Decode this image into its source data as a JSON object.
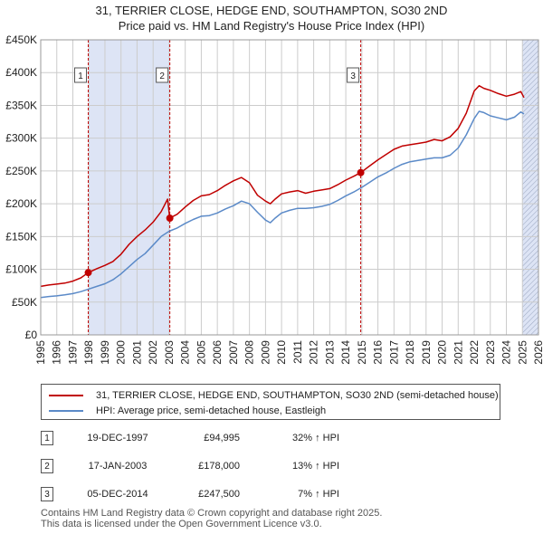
{
  "title_line1": "31, TERRIER CLOSE, HEDGE END, SOUTHAMPTON, SO30 2ND",
  "title_line2": "Price paid vs. HM Land Registry's House Price Index (HPI)",
  "colors": {
    "price_line": "#c00000",
    "hpi_line": "#5b8ac8",
    "shade": "#dde4f5",
    "grid": "#cccccc",
    "vline": "#c00000"
  },
  "chart_data": {
    "type": "line",
    "x_range": [
      1995,
      2026
    ],
    "ylim": [
      0,
      450000
    ],
    "y_ticks": [
      0,
      50000,
      100000,
      150000,
      200000,
      250000,
      300000,
      350000,
      400000,
      450000
    ],
    "y_tick_labels": [
      "£0",
      "£50K",
      "£100K",
      "£150K",
      "£200K",
      "£250K",
      "£300K",
      "£350K",
      "£400K",
      "£450K"
    ],
    "x_ticks": [
      1995,
      1996,
      1997,
      1998,
      1999,
      2000,
      2001,
      2002,
      2003,
      2004,
      2005,
      2006,
      2007,
      2008,
      2009,
      2010,
      2011,
      2012,
      2013,
      2014,
      2015,
      2016,
      2017,
      2018,
      2019,
      2020,
      2021,
      2022,
      2023,
      2024,
      2025,
      2026
    ],
    "shaded_spans": [
      [
        1997.96,
        2003.04
      ],
      [
        2025.0,
        2026.0
      ]
    ],
    "hatched_span": [
      2025.0,
      2026.0
    ],
    "series": [
      {
        "name": "31, TERRIER CLOSE, HEDGE END, SOUTHAMPTON, SO30 2ND (semi-detached house)",
        "color": "#c00000",
        "x": [
          1995,
          1995.5,
          1996,
          1996.5,
          1997,
          1997.5,
          1997.96,
          1998.5,
          1999,
          1999.5,
          2000,
          2000.5,
          2001,
          2001.5,
          2002,
          2002.5,
          2002.9,
          2003.04,
          2003.5,
          2004,
          2004.5,
          2005,
          2005.5,
          2006,
          2006.5,
          2007,
          2007.5,
          2008,
          2008.5,
          2009,
          2009.3,
          2009.6,
          2010,
          2010.5,
          2011,
          2011.5,
          2012,
          2012.5,
          2013,
          2013.5,
          2014,
          2014.5,
          2014.93,
          2015.5,
          2016,
          2016.5,
          2017,
          2017.5,
          2018,
          2018.5,
          2019,
          2019.5,
          2020,
          2020.5,
          2021,
          2021.5,
          2022,
          2022.3,
          2022.6,
          2023,
          2023.5,
          2024,
          2024.5,
          2024.9,
          2025.1
        ],
        "values": [
          74000,
          76000,
          77500,
          79000,
          82000,
          87000,
          94995,
          101000,
          106000,
          112000,
          123000,
          138000,
          150000,
          160000,
          172000,
          188000,
          207000,
          178000,
          184000,
          195000,
          205000,
          212000,
          214000,
          220000,
          228000,
          235000,
          240000,
          232000,
          213000,
          204000,
          200000,
          207000,
          215000,
          218000,
          220000,
          216000,
          219000,
          221000,
          223000,
          229000,
          236000,
          242000,
          247500,
          258000,
          267000,
          275000,
          283000,
          288000,
          290000,
          292000,
          294000,
          298000,
          296000,
          302000,
          315000,
          338000,
          372000,
          380000,
          376000,
          373000,
          368000,
          364000,
          367000,
          371000,
          362000
        ]
      },
      {
        "name": "HPI: Average price, semi-detached house, Eastleigh",
        "color": "#5b8ac8",
        "x": [
          1995,
          1995.5,
          1996,
          1996.5,
          1997,
          1997.5,
          1998,
          1998.5,
          1999,
          1999.5,
          2000,
          2000.5,
          2001,
          2001.5,
          2002,
          2002.5,
          2003,
          2003.5,
          2004,
          2004.5,
          2005,
          2005.5,
          2006,
          2006.5,
          2007,
          2007.5,
          2008,
          2008.5,
          2009,
          2009.3,
          2009.6,
          2010,
          2010.5,
          2011,
          2011.5,
          2012,
          2012.5,
          2013,
          2013.5,
          2014,
          2014.5,
          2015,
          2015.5,
          2016,
          2016.5,
          2017,
          2017.5,
          2018,
          2018.5,
          2019,
          2019.5,
          2020,
          2020.5,
          2021,
          2021.5,
          2022,
          2022.3,
          2022.6,
          2023,
          2023.5,
          2024,
          2024.5,
          2024.9,
          2025.1
        ],
        "values": [
          57000,
          58500,
          59500,
          61000,
          63000,
          66000,
          70000,
          74000,
          78000,
          84000,
          93000,
          104000,
          115000,
          124000,
          137000,
          150000,
          158000,
          163000,
          170000,
          176000,
          181000,
          182000,
          186000,
          192000,
          197000,
          204000,
          200000,
          187000,
          175000,
          171000,
          178000,
          186000,
          190000,
          193000,
          193000,
          194000,
          196000,
          199000,
          205000,
          212000,
          218000,
          225000,
          233000,
          241000,
          247000,
          254000,
          260000,
          264000,
          266000,
          268000,
          270000,
          270000,
          274000,
          285000,
          305000,
          330000,
          341000,
          339000,
          334000,
          331000,
          328000,
          332000,
          340000,
          337000
        ]
      }
    ],
    "markers": [
      {
        "label": "1",
        "x": 1997.96,
        "value": 94995
      },
      {
        "label": "2",
        "x": 2003.04,
        "value": 178000
      },
      {
        "label": "3",
        "x": 2014.93,
        "value": 247500
      }
    ]
  },
  "legend": {
    "price_label": "31, TERRIER CLOSE, HEDGE END, SOUTHAMPTON, SO30 2ND (semi-detached house)",
    "hpi_label": "HPI: Average price, semi-detached house, Eastleigh"
  },
  "transactions": [
    {
      "num": "1",
      "date": "19-DEC-1997",
      "price": "£94,995",
      "hpi": "32% ↑ HPI"
    },
    {
      "num": "2",
      "date": "17-JAN-2003",
      "price": "£178,000",
      "hpi": "13% ↑ HPI"
    },
    {
      "num": "3",
      "date": "05-DEC-2014",
      "price": "£247,500",
      "hpi": "7% ↑ HPI"
    }
  ],
  "footer_line1": "Contains HM Land Registry data © Crown copyright and database right 2025.",
  "footer_line2": "This data is licensed under the Open Government Licence v3.0."
}
